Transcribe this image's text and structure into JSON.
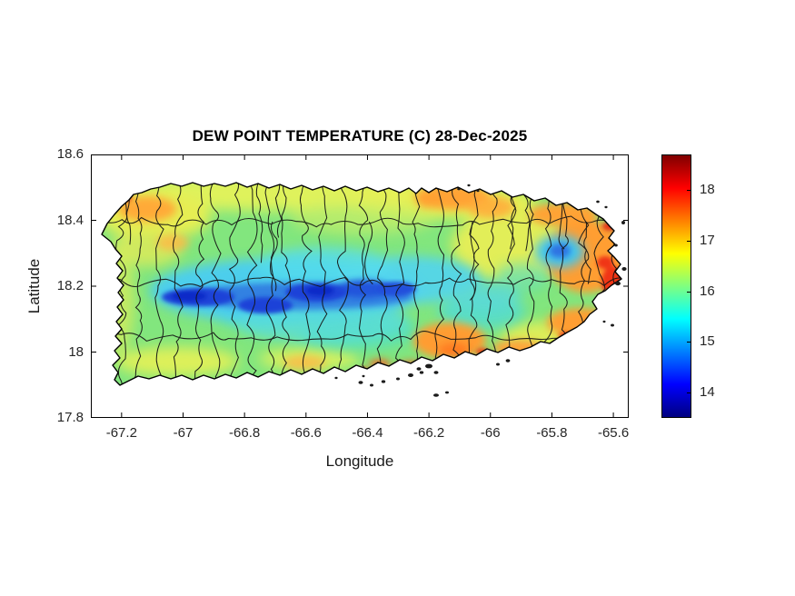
{
  "figure": {
    "title": "DEW POINT TEMPERATURE (C) 28-Dec-2025",
    "background_color": "#FFFFFF",
    "text_color": "#262626"
  },
  "axes": {
    "xlabel": "Longitude",
    "ylabel": "Latitude",
    "x_ticks": [
      "-67.2",
      "-67",
      "-66.8",
      "-66.6",
      "-66.4",
      "-66.2",
      "-66",
      "-65.8",
      "-65.6"
    ],
    "x_tick_values": [
      -67.2,
      -67,
      -66.8,
      -66.6,
      -66.4,
      -66.2,
      -66,
      -65.8,
      -65.6
    ],
    "y_ticks": [
      "18.6",
      "18.4",
      "18.2",
      "18",
      "17.8"
    ],
    "y_tick_values": [
      18.6,
      18.4,
      18.2,
      18,
      17.8
    ],
    "xlim": [
      -67.3,
      -65.55
    ],
    "ylim": [
      17.8,
      18.6
    ]
  },
  "colorbar": {
    "tick_labels": [
      "18",
      "17",
      "16",
      "15",
      "14"
    ],
    "tick_values": [
      18,
      17,
      16,
      15,
      14
    ],
    "min": 13.5,
    "max": 18.7,
    "colormap": "jet",
    "jet_stops": [
      [
        "#000080",
        0
      ],
      [
        "#0000FF",
        12.5
      ],
      [
        "#00FFFF",
        37.5
      ],
      [
        "#FFFF00",
        62.5
      ],
      [
        "#FF0000",
        87.5
      ],
      [
        "#800000",
        100
      ]
    ]
  },
  "chart_data": {
    "type": "heatmap",
    "title": "DEW POINT TEMPERATURE (C) 28-Dec-2025",
    "xlabel": "Longitude",
    "ylabel": "Latitude",
    "xlim": [
      -67.3,
      -65.55
    ],
    "ylim": [
      17.8,
      18.6
    ],
    "region": "Puerto Rico (island filled-contour map with municipality boundaries)",
    "grid": false,
    "colorbar": {
      "units": "C",
      "range": [
        13.5,
        18.7
      ],
      "ticks": [
        14,
        15,
        16,
        17,
        18
      ],
      "colormap": "jet",
      "position": "right"
    },
    "features": [
      {
        "area": "Cordillera Central interior minimum (dark blue band)",
        "lon_range": [
          -66.95,
          -66.3
        ],
        "lat": 18.15,
        "value_c": 13.8
      },
      {
        "area": "Central mountain cyan halo",
        "lon_range": [
          -67.0,
          -66.05
        ],
        "lat_range": [
          18.05,
          18.3
        ],
        "value_c": 15.0
      },
      {
        "area": "Typical island lowlands (green)",
        "value_c": 16.0
      },
      {
        "area": "North coast yellow band",
        "lat": 18.45,
        "value_c": 16.8
      },
      {
        "area": "Northwest Aguadilla/Moca orange patch",
        "lon": -67.12,
        "lat": 18.42,
        "value_c": 17.3
      },
      {
        "area": "San Juan metro north coast orange",
        "lon": -66.1,
        "lat": 18.45,
        "value_c": 17.3
      },
      {
        "area": "El Yunque east-mountain blue spot",
        "lon": -65.78,
        "lat": 18.3,
        "value_c": 15.0
      },
      {
        "area": "East tip Fajardo/Ceiba maximum (red)",
        "lon": -65.62,
        "lat": 18.22,
        "value_c": 18.3
      },
      {
        "area": "Southeast Humacao/Yabucoa coast orange",
        "lon": -65.75,
        "lat": 18.08,
        "value_c": 17.5
      },
      {
        "area": "South coast Guayama/Salinas orange-red spots",
        "lon": -66.2,
        "lat": 17.97,
        "value_c": 17.8
      },
      {
        "area": "Southwest Lajas valley yellow",
        "lon": -67.05,
        "lat": 17.98,
        "value_c": 16.6
      }
    ]
  }
}
